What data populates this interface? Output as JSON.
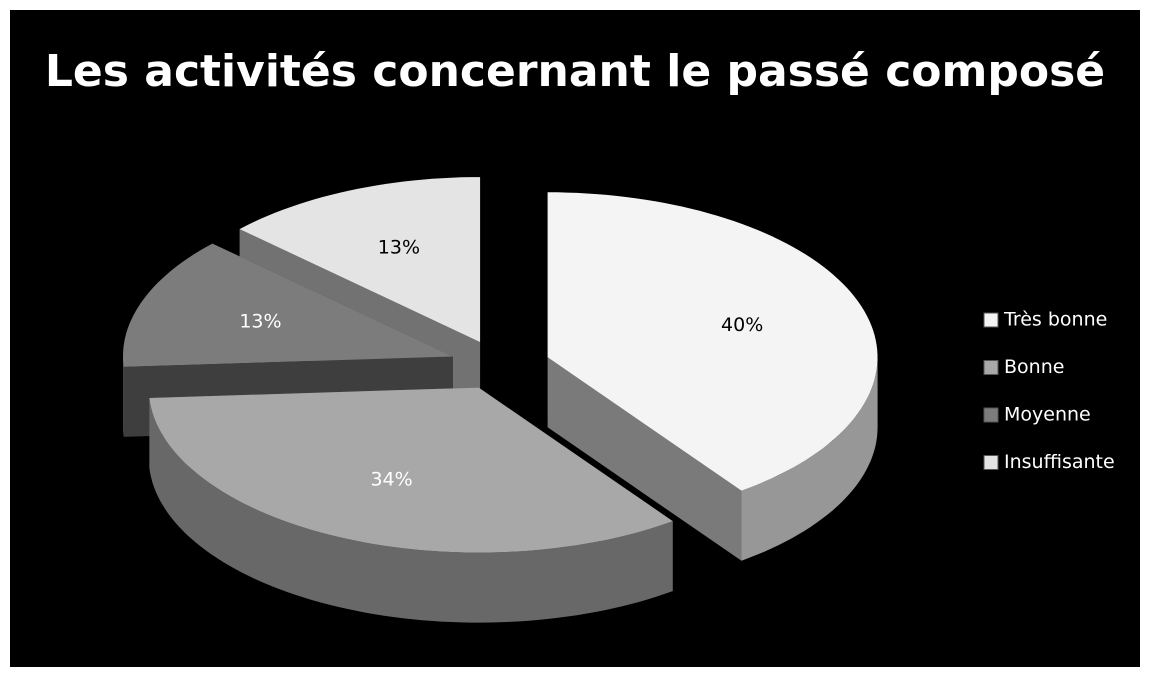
{
  "chart_data": {
    "type": "pie",
    "title": "Les activités concernant le passé composé",
    "categories": [
      "Très bonne",
      "Bonne",
      "Moyenne",
      "Insuffisante"
    ],
    "values": [
      40,
      34,
      13,
      13
    ],
    "value_labels": [
      "40%",
      "34%",
      "13%",
      "13%"
    ],
    "colors": [
      "#f4f4f4",
      "#a8a8a8",
      "#7c7c7c",
      "#e4e4e4"
    ],
    "legend": "right"
  }
}
